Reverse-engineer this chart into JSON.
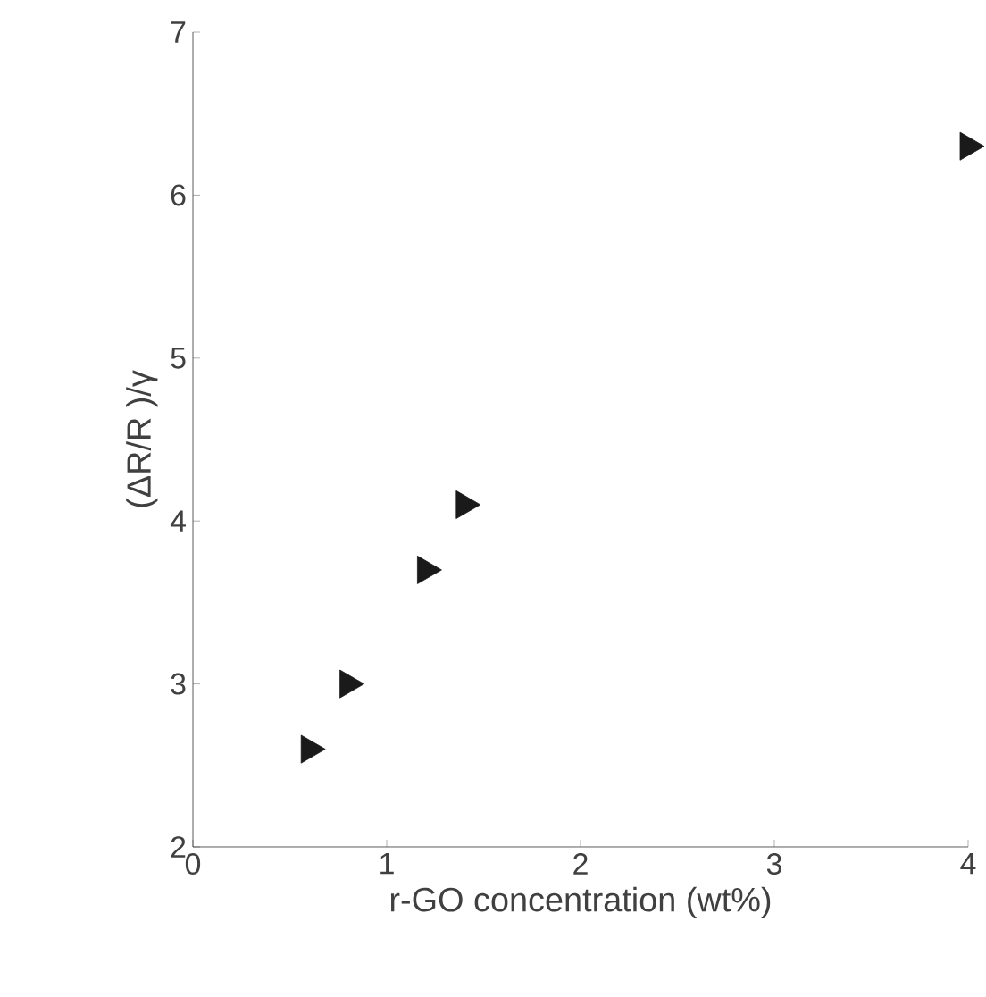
{
  "chart_data": {
    "type": "scatter",
    "xlabel": "r-GO concentration (wt%)",
    "ylabel": "(ΔR/R )/γ",
    "x": [
      0.6,
      0.8,
      1.2,
      1.4,
      4.0
    ],
    "values": [
      2.6,
      3.0,
      3.7,
      4.1,
      6.3
    ],
    "color": "#1a1a1a",
    "marker": "triangle",
    "xlim": [
      0,
      4
    ],
    "ylim": [
      2,
      7
    ],
    "xticks": [
      0,
      1,
      2,
      3,
      4
    ],
    "yticks": [
      2,
      3,
      4,
      5,
      6,
      7
    ],
    "grid": false
  }
}
